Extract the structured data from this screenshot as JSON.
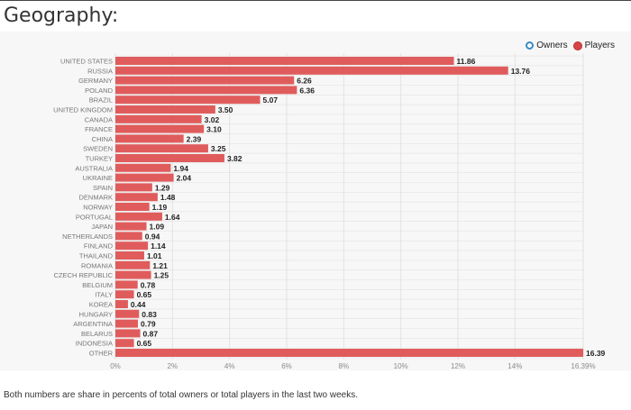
{
  "page": {
    "title": "Geography:",
    "footnote": "Both numbers are share in percents of total owners or total players in the last two weeks."
  },
  "legend": {
    "owners_label": "Owners",
    "players_label": "Players"
  },
  "colors": {
    "bar": "#e05c5c",
    "grid": "#e2e2e2",
    "tick": "#8a8a8a",
    "category": "#777777",
    "value_label": "#222222"
  },
  "chart_data": {
    "type": "bar",
    "orientation": "horizontal",
    "title": "Geography:",
    "xlabel": "",
    "ylabel": "",
    "categories": [
      "UNITED STATES",
      "RUSSIA",
      "GERMANY",
      "POLAND",
      "BRAZIL",
      "UNITED KINGDOM",
      "CANADA",
      "FRANCE",
      "CHINA",
      "SWEDEN",
      "TURKEY",
      "AUSTRALIA",
      "UKRAINE",
      "SPAIN",
      "DENMARK",
      "NORWAY",
      "PORTUGAL",
      "JAPAN",
      "NETHERLANDS",
      "FINLAND",
      "THAILAND",
      "ROMANIA",
      "CZECH REPUBLIC",
      "BELGIUM",
      "ITALY",
      "KOREA",
      "HUNGARY",
      "ARGENTINA",
      "BELARUS",
      "INDONESIA",
      "OTHER"
    ],
    "series": [
      {
        "name": "Players",
        "values": [
          11.86,
          13.76,
          6.26,
          6.36,
          5.07,
          3.5,
          3.02,
          3.1,
          2.39,
          3.25,
          3.82,
          1.94,
          2.04,
          1.29,
          1.48,
          1.19,
          1.64,
          1.09,
          0.94,
          1.14,
          1.01,
          1.21,
          1.25,
          0.78,
          0.65,
          0.44,
          0.83,
          0.79,
          0.87,
          0.65,
          16.39
        ],
        "value_labels": [
          "11.86",
          "13.76",
          "6.26",
          "6.36",
          "5.07",
          "3.50",
          "3.02",
          "3.10",
          "2.39",
          "3.25",
          "3.82",
          "1.94",
          "2.04",
          "1.29",
          "1.48",
          "1.19",
          "1.64",
          "1.09",
          "0.94",
          "1.14",
          "1.01",
          "1.21",
          "1.25",
          "0.78",
          "0.65",
          "0.44",
          "0.83",
          "0.79",
          "0.87",
          "0.65",
          "16.39"
        ]
      }
    ],
    "xlim": [
      0,
      16.39
    ],
    "xticks": [
      0,
      2,
      4,
      6,
      8,
      10,
      12,
      14,
      16.39
    ],
    "xtick_labels": [
      "0%",
      "2%",
      "4%",
      "6%",
      "8%",
      "10%",
      "12%",
      "14%",
      "16.39%"
    ],
    "grid": true,
    "legend_position": "top-right"
  }
}
